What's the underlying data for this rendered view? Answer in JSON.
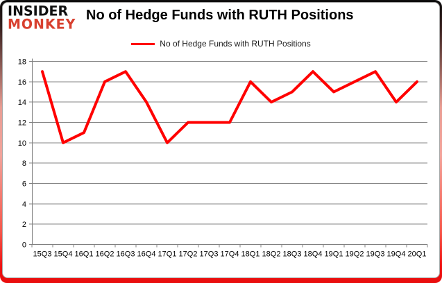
{
  "logo": {
    "line1": "INSIDER",
    "line2": "MONKEY"
  },
  "header": {
    "title": "No of Hedge Funds with RUTH Positions"
  },
  "legend": {
    "label": "No of Hedge Funds with RUTH Positions"
  },
  "colors": {
    "series": "#ff0000",
    "gridline": "#868686",
    "axis": "#808080",
    "logo_red": "#d8402f",
    "chart_border": "#a8a8a8",
    "frame_top": "#0d0d0d",
    "frame_mid": "#f2a39a",
    "frame_bottom": "#ee1111"
  },
  "chart_data": {
    "type": "line",
    "title": "No of Hedge Funds with RUTH Positions",
    "categories": [
      "15Q3",
      "15Q4",
      "16Q1",
      "16Q2",
      "16Q3",
      "16Q4",
      "17Q1",
      "17Q2",
      "17Q3",
      "17Q4",
      "18Q1",
      "18Q2",
      "18Q3",
      "18Q4",
      "19Q1",
      "19Q2",
      "19Q3",
      "19Q4",
      "20Q1"
    ],
    "series": [
      {
        "name": "No of Hedge Funds with RUTH Positions",
        "values": [
          17,
          10,
          11,
          16,
          17,
          14,
          10,
          12,
          12,
          12,
          16,
          14,
          15,
          17,
          15,
          16,
          17,
          14,
          16
        ]
      }
    ],
    "xlabel": "",
    "ylabel": "",
    "ylim": [
      0,
      18
    ],
    "yticks": [
      0,
      2,
      4,
      6,
      8,
      10,
      12,
      14,
      16,
      18
    ],
    "grid": true,
    "legend_position": "top"
  }
}
